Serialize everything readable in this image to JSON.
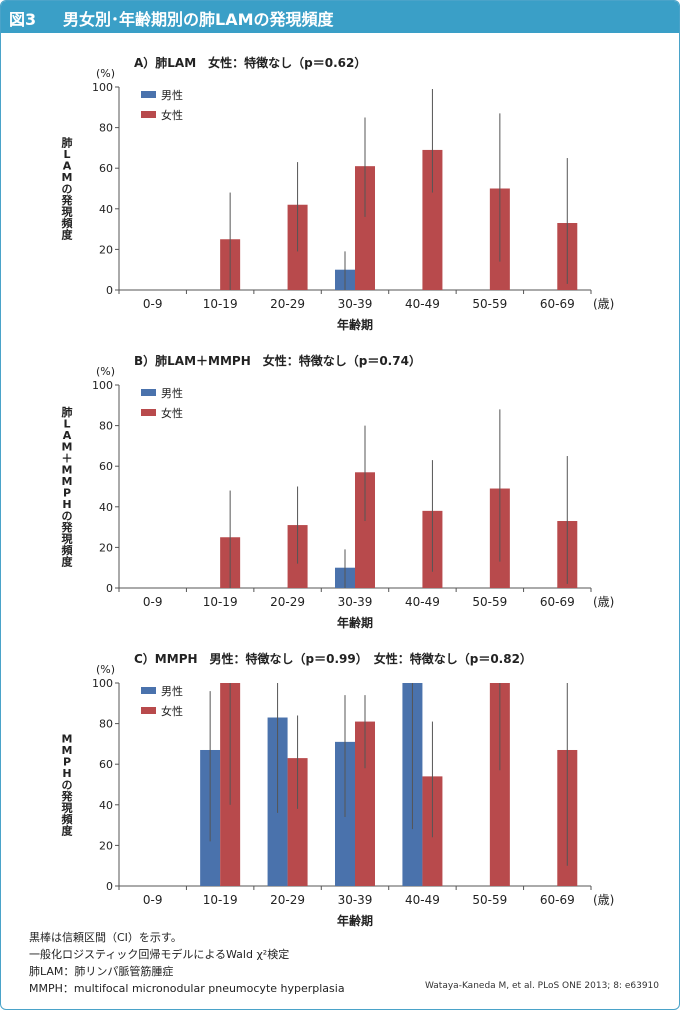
{
  "header": {
    "fig_label": "図3",
    "title": "男女別･年齢期別の肺LAMの発現頻度"
  },
  "colors": {
    "male": "#4a72ac",
    "female": "#b84a4c",
    "header": "#3a9fc7"
  },
  "legend": {
    "male": "男性",
    "female": "女性"
  },
  "chart_data": [
    {
      "type": "bar",
      "title": "A）肺LAM　女性：特徴なし（p＝0.62）",
      "ylabel": "肺LAMの発現頻度",
      "yunit": "(%)",
      "xlabel": "年齢期",
      "xunit": "(歳)",
      "ylim": [
        0,
        100
      ],
      "yticks": [
        0,
        20,
        40,
        60,
        80,
        100
      ],
      "categories": [
        "0-9",
        "10-19",
        "20-29",
        "30-39",
        "40-49",
        "50-59",
        "60-69"
      ],
      "series": [
        {
          "name": "男性",
          "values": [
            null,
            null,
            null,
            10,
            null,
            null,
            null
          ],
          "ci_low": [
            null,
            null,
            null,
            0,
            null,
            null,
            null
          ],
          "ci_high": [
            null,
            null,
            null,
            19,
            null,
            null,
            null
          ]
        },
        {
          "name": "女性",
          "values": [
            null,
            25,
            42,
            61,
            69,
            50,
            33
          ],
          "ci_low": [
            null,
            0,
            19,
            36,
            48,
            14,
            3
          ],
          "ci_high": [
            null,
            48,
            63,
            85,
            99,
            87,
            65
          ]
        }
      ]
    },
    {
      "type": "bar",
      "title": "B）肺LAM＋MMPH　女性：特徴なし（p＝0.74）",
      "ylabel": "肺LAM＋MMPHの発現頻度",
      "yunit": "(%)",
      "xlabel": "年齢期",
      "xunit": "(歳)",
      "ylim": [
        0,
        100
      ],
      "yticks": [
        0,
        20,
        40,
        60,
        80,
        100
      ],
      "categories": [
        "0-9",
        "10-19",
        "20-29",
        "30-39",
        "40-49",
        "50-59",
        "60-69"
      ],
      "series": [
        {
          "name": "男性",
          "values": [
            null,
            null,
            null,
            10,
            null,
            null,
            null
          ],
          "ci_low": [
            null,
            null,
            null,
            0,
            null,
            null,
            null
          ],
          "ci_high": [
            null,
            null,
            null,
            19,
            null,
            null,
            null
          ]
        },
        {
          "name": "女性",
          "values": [
            null,
            25,
            31,
            57,
            38,
            49,
            33
          ],
          "ci_low": [
            null,
            0,
            12,
            33,
            8,
            13,
            2
          ],
          "ci_high": [
            null,
            48,
            50,
            80,
            63,
            88,
            65
          ]
        }
      ]
    },
    {
      "type": "bar",
      "title": "C）MMPH　男性：特徴なし（p＝0.99）　女性：特徴なし（p＝0.82）",
      "ylabel": "MMPHの発現頻度",
      "yunit": "(%)",
      "xlabel": "年齢期",
      "xunit": "(歳)",
      "ylim": [
        0,
        100
      ],
      "yticks": [
        0,
        20,
        40,
        60,
        80,
        100
      ],
      "categories": [
        "0-9",
        "10-19",
        "20-29",
        "30-39",
        "40-49",
        "50-59",
        "60-69"
      ],
      "series": [
        {
          "name": "男性",
          "values": [
            null,
            67,
            83,
            71,
            100,
            null,
            null
          ],
          "ci_low": [
            null,
            22,
            36,
            34,
            28,
            null,
            null
          ],
          "ci_high": [
            null,
            96,
            100,
            94,
            100,
            null,
            null
          ]
        },
        {
          "name": "女性",
          "values": [
            null,
            100,
            63,
            81,
            54,
            100,
            67
          ],
          "ci_low": [
            null,
            40,
            38,
            58,
            24,
            57,
            10
          ],
          "ci_high": [
            null,
            100,
            84,
            94,
            81,
            100,
            100
          ]
        }
      ]
    }
  ],
  "notes": [
    "黒棒は信頼区間（CI）を示す。",
    "一般化ロジスティック回帰モデルによるWald χ²検定",
    "肺LAM：肺リンパ脈管筋腫症",
    "MMPH：multifocal micronodular pneumocyte hyperplasia"
  ],
  "citation": "Wataya-Kaneda M, et al. PLoS ONE 2013; 8: e63910"
}
